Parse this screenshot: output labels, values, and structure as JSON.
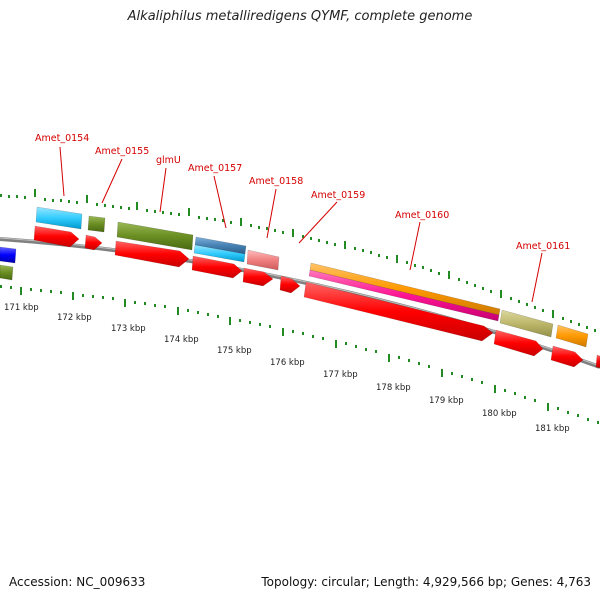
{
  "title": "Alkaliphilus metalliredigens QYMF, complete genome",
  "footer": {
    "accession": "Accession: NC_009633",
    "summary": "Topology: circular; Length: 4,929,566 bp; Genes: 4,763"
  },
  "gene_labels": [
    "Amet_0154",
    "Amet_0155",
    "glmU",
    "Amet_0157",
    "Amet_0158",
    "Amet_0159",
    "Amet_0160",
    "Amet_0161"
  ],
  "kbp_labels": [
    "171 kbp",
    "172 kbp",
    "173 kbp",
    "174 kbp",
    "175 kbp",
    "176 kbp",
    "177 kbp",
    "178 kbp",
    "179 kbp",
    "180 kbp",
    "181 kbp"
  ],
  "colors": {
    "label": "#d40000",
    "cds": "#ff0000",
    "cyan": "#33ccff",
    "olive": "#6b8e23",
    "steelblue": "#4682b4",
    "salmon": "#f08080",
    "orange": "#ff9900",
    "magenta": "#ff1493",
    "khaki": "#bdb76b",
    "blue": "#0000ff",
    "backbone": "#808080",
    "tick": "#228b22"
  }
}
